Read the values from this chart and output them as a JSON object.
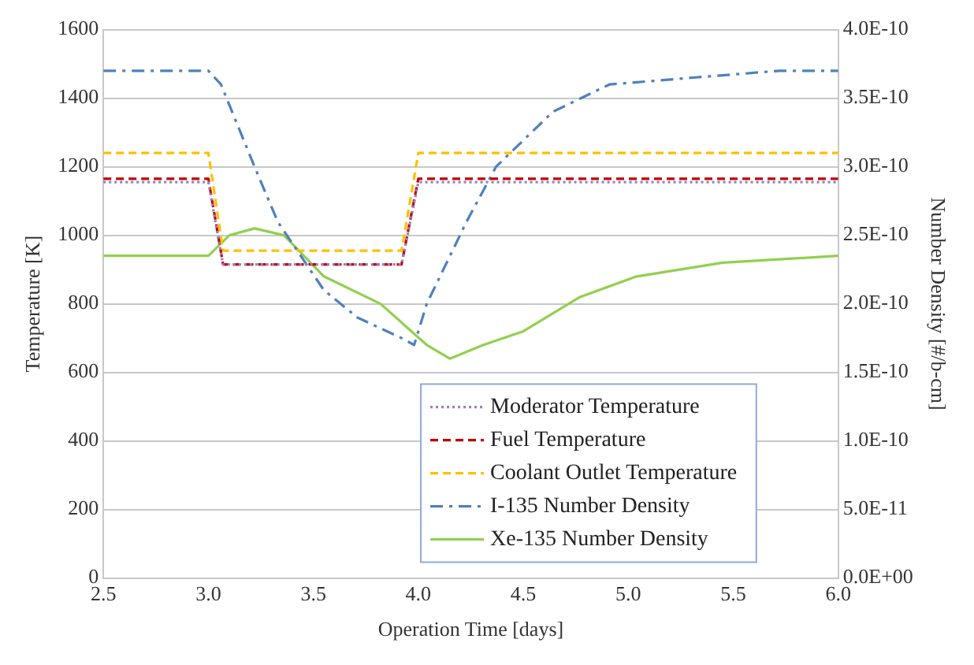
{
  "chart_data": {
    "type": "line",
    "xlabel": "Operation Time [days]",
    "ylabel": "Temperature [K]",
    "y2label": "Number Density [#/b-cm]",
    "xlim": [
      2.5,
      6.0
    ],
    "xticks": [
      2.5,
      {
        "value": 3,
        "label": "3.0"
      },
      3.5,
      {
        "value": 4,
        "label": "4.0"
      },
      4.5,
      {
        "value": 5,
        "label": "5.0"
      },
      5.5,
      {
        "value": 6,
        "label": "6.0"
      }
    ],
    "ylim": [
      0,
      1600
    ],
    "yticks": [
      0,
      200,
      400,
      600,
      800,
      1000,
      1200,
      1400,
      1600
    ],
    "y2lim": [
      0,
      4e-10
    ],
    "y2ticks": [
      {
        "value": 0,
        "label": "0.0E+00"
      },
      {
        "value": 5e-11,
        "label": "5.0E-11"
      },
      {
        "value": 1e-10,
        "label": "1.0E-10"
      },
      {
        "value": 1.5e-10,
        "label": "1.5E-10"
      },
      {
        "value": 2e-10,
        "label": "2.0E-10"
      },
      {
        "value": 2.5e-10,
        "label": "2.5E-10"
      },
      {
        "value": 3e-10,
        "label": "3.0E-10"
      },
      {
        "value": 3.5e-10,
        "label": "3.5E-10"
      },
      {
        "value": 4e-10,
        "label": "4.0E-10"
      }
    ],
    "grid": "y",
    "legend": "bottom right",
    "marker": "none",
    "series": [
      {
        "name": "Moderator Temperature",
        "color": "#9b7fc0",
        "line_style": "dotted",
        "x": [
          2.5,
          3.0,
          3.07,
          3.92,
          4.0,
          6.0
        ],
        "values": [
          1155,
          1155,
          915,
          915,
          1155,
          1155
        ]
      },
      {
        "name": "Fuel Temperature",
        "color": "#c00000",
        "line_style": "dashed",
        "x": [
          2.5,
          3.0,
          3.07,
          3.92,
          4.0,
          6.0
        ],
        "values": [
          1165,
          1165,
          915,
          915,
          1165,
          1165
        ]
      },
      {
        "name": "Coolant Outlet Temperature",
        "color": "#ffc000",
        "line_style": "dashed",
        "x": [
          2.5,
          3.0,
          3.07,
          3.92,
          4.0,
          6.0
        ],
        "values": [
          1240,
          1240,
          955,
          955,
          1240,
          1240
        ]
      },
      {
        "name": "I-135 Number Density",
        "color": "#4f81bd",
        "line_style": "dashdot",
        "axis": "y2",
        "x": [
          2.5,
          3.0,
          3.06,
          3.22,
          3.33,
          3.55,
          3.71,
          3.92,
          3.98,
          4.04,
          4.23,
          4.37,
          4.64,
          4.91,
          5.31,
          5.72,
          6.0
        ],
        "values": [
          3.7e-10,
          3.7e-10,
          3.6e-10,
          3e-10,
          2.6e-10,
          2.1e-10,
          1.9e-10,
          1.75e-10,
          1.7e-10,
          2e-10,
          2.6e-10,
          3e-10,
          3.4e-10,
          3.6e-10,
          3.65e-10,
          3.7e-10,
          3.7e-10
        ]
      },
      {
        "name": "Xe-135 Number Density",
        "color": "#92d050",
        "line_style": "solid",
        "axis": "y2",
        "x": [
          2.5,
          3.0,
          3.1,
          3.22,
          3.36,
          3.55,
          3.82,
          3.93,
          4.04,
          4.15,
          4.31,
          4.5,
          4.77,
          5.04,
          5.45,
          6.0
        ],
        "values": [
          2.35e-10,
          2.35e-10,
          2.5e-10,
          2.55e-10,
          2.5e-10,
          2.2e-10,
          2e-10,
          1.85e-10,
          1.7e-10,
          1.6e-10,
          1.7e-10,
          1.8e-10,
          2.05e-10,
          2.2e-10,
          2.3e-10,
          2.35e-10
        ]
      }
    ]
  }
}
